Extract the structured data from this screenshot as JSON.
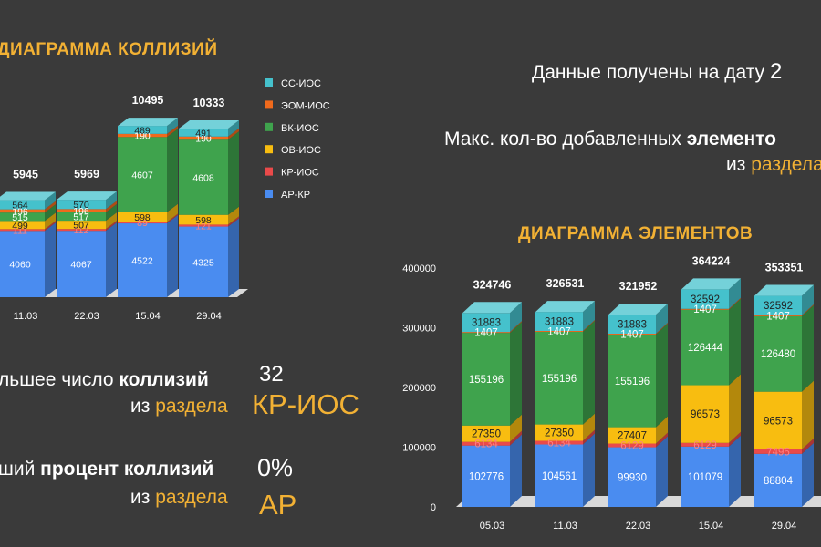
{
  "collisions_title": "ДИАГРАММА КОЛЛИЗИЙ",
  "elements_title": "ДИАГРАММА ЭЛЕМЕНТОВ",
  "info": {
    "date_text": "Данные получены на дату",
    "date_value": "2",
    "max_prefix": "Макс. кол-во добавленных",
    "max_bold": "элементо",
    "max_from": "из",
    "max_section": "раздела",
    "most_prefix": "льшее число",
    "most_bold": "коллизий",
    "most_value": "32",
    "most_from": "из",
    "most_section": "раздела",
    "most_section_value": "КР-ИОС",
    "least_prefix": "ший",
    "least_bold": "процент коллизий",
    "least_value": "0%",
    "least_from": "из",
    "least_section": "раздела",
    "least_section_value": "АР"
  },
  "colors": {
    "АР-КР": "#4a8cf0",
    "КР-ИОС": "#ea4a4a",
    "ОВ-ИОС": "#f8bd10",
    "ВК-ИОС": "#3fa34d",
    "ЭОМ-ИОС": "#f06a1c",
    "СС-ИОС": "#45c1cc"
  },
  "chart_data": [
    {
      "type": "bar",
      "stacked": true,
      "title": "ДИАГРАММА КОЛЛИЗИЙ",
      "categories": [
        "11.03",
        "22.03",
        "15.04",
        "29.04"
      ],
      "totals": [
        "5945",
        "5969",
        "10495",
        "10333"
      ],
      "legend": [
        "СС-ИОС",
        "ЭОМ-ИОС",
        "ВК-ИОС",
        "ОВ-ИОС",
        "КР-ИОС",
        "АР-КР"
      ],
      "legend_position": "right",
      "series": [
        {
          "name": "АР-КР",
          "values": [
            4060,
            4067,
            4522,
            4325
          ]
        },
        {
          "name": "КР-ИОС",
          "values": [
            111,
            112,
            89,
            121
          ]
        },
        {
          "name": "ОВ-ИОС",
          "values": [
            499,
            507,
            598,
            598
          ]
        },
        {
          "name": "ВК-ИОС",
          "values": [
            515,
            517,
            4607,
            4608
          ]
        },
        {
          "name": "ЭОМ-ИОС",
          "values": [
            196,
            196,
            190,
            190
          ]
        },
        {
          "name": "СС-ИОС",
          "values": [
            564,
            570,
            489,
            491
          ]
        }
      ],
      "labels": [
        {
          "name": "АР-КР",
          "values": [
            "4060",
            "4067",
            "4522",
            "4325"
          ]
        },
        {
          "name": "КР-ИОС",
          "values": [
            "111",
            "112",
            "89",
            "121"
          ]
        },
        {
          "name": "ОВ-ИОС",
          "values": [
            "499",
            "507",
            "598",
            "598"
          ]
        },
        {
          "name": "ВК-ИОС",
          "values": [
            "515",
            "517",
            "4607",
            "4608"
          ]
        },
        {
          "name": "ЭОМ-ИОС",
          "values": [
            "196",
            "196",
            "190",
            "190"
          ]
        },
        {
          "name": "СС-ИОС",
          "values": [
            "564",
            "570",
            "489",
            "491"
          ]
        }
      ],
      "ylim": [
        0,
        10500
      ]
    },
    {
      "type": "bar",
      "stacked": true,
      "title": "ДИАГРАММА ЭЛЕМЕНТОВ",
      "categories": [
        "05.03",
        "11.03",
        "22.03",
        "15.04",
        "29.04"
      ],
      "totals": [
        "324746",
        "326531",
        "321952",
        "364224",
        "353351"
      ],
      "yticks": [
        "400000",
        "300000",
        "200000",
        "100000",
        "0"
      ],
      "ylim": [
        0,
        400000
      ],
      "series": [
        {
          "name": "АР-КР",
          "values": [
            102776,
            104561,
            99930,
            101079,
            88804
          ]
        },
        {
          "name": "КР-ИОС",
          "values": [
            6134,
            6134,
            6129,
            6129,
            7495
          ]
        },
        {
          "name": "ОВ-ИОС",
          "values": [
            27350,
            27350,
            27407,
            96573,
            96573
          ]
        },
        {
          "name": "ВК-ИОС",
          "values": [
            155196,
            155196,
            155196,
            126444,
            126480
          ]
        },
        {
          "name": "ЭОМ-ИОС",
          "values": [
            1407,
            1407,
            1407,
            1407,
            1407
          ]
        },
        {
          "name": "СС-ИОС",
          "values": [
            31883,
            31883,
            31883,
            32592,
            32592
          ]
        }
      ],
      "labels": [
        {
          "name": "АР-КР",
          "values": [
            "102776",
            "104561",
            "99930",
            "101079",
            "88804"
          ]
        },
        {
          "name": "КР-ИОС",
          "values": [
            "6134",
            "6134",
            "6129",
            "6129",
            "7495"
          ]
        },
        {
          "name": "ОВ-ИОС",
          "values": [
            "27350",
            "27350",
            "27407",
            "96573",
            "96573"
          ]
        },
        {
          "name": "ВК-ИОС",
          "values": [
            "155196",
            "155196",
            "155196",
            "126444",
            "126480"
          ]
        },
        {
          "name": "ЭОМ-ИОС",
          "values": [
            "1407",
            "1407",
            "1407",
            "1407",
            "1407"
          ]
        },
        {
          "name": "СС-ИОС",
          "values": [
            "31883",
            "31883",
            "31883",
            "32592",
            "32592"
          ]
        }
      ]
    }
  ]
}
